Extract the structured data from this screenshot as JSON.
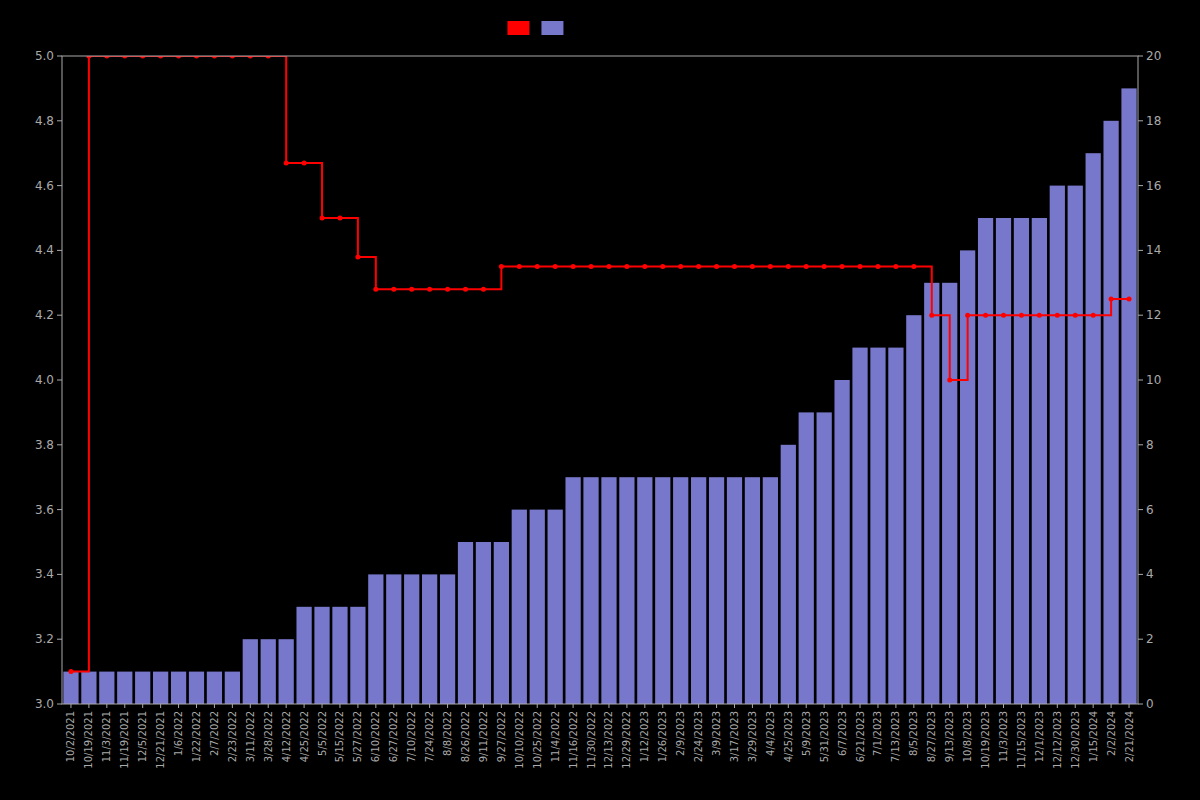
{
  "chart_data": {
    "type": "bar",
    "categories": [
      "10/2/2021",
      "10/19/2021",
      "11/3/2021",
      "11/19/2021",
      "12/5/2021",
      "12/21/2021",
      "1/6/2022",
      "1/22/2022",
      "2/7/2022",
      "2/23/2022",
      "3/11/2022",
      "3/28/2022",
      "4/12/2022",
      "4/25/2022",
      "5/5/2022",
      "5/15/2022",
      "5/27/2022",
      "6/10/2022",
      "6/27/2022",
      "7/10/2022",
      "7/24/2022",
      "8/8/2022",
      "8/26/2022",
      "9/11/2022",
      "9/27/2022",
      "10/10/2022",
      "10/25/2022",
      "11/4/2022",
      "11/16/2022",
      "11/30/2022",
      "12/13/2022",
      "12/29/2022",
      "1/12/2023",
      "1/26/2023",
      "2/9/2023",
      "2/24/2023",
      "3/9/2023",
      "3/17/2023",
      "3/29/2023",
      "4/4/2023",
      "4/25/2023",
      "5/9/2023",
      "5/31/2023",
      "6/7/2023",
      "6/21/2023",
      "7/1/2023",
      "7/13/2023",
      "8/5/2023",
      "8/27/2023",
      "9/13/2023",
      "10/8/2023",
      "10/19/2023",
      "11/3/2023",
      "11/15/2023",
      "12/1/2023",
      "12/12/2023",
      "12/30/2023",
      "1/15/2024",
      "2/2/2024",
      "2/21/2024"
    ],
    "series": [
      {
        "type": "bar",
        "axis": "y2",
        "color": "#7777cc",
        "values": [
          1,
          1,
          1,
          1,
          1,
          1,
          1,
          1,
          1,
          1,
          2,
          2,
          2,
          3,
          3,
          3,
          3,
          4,
          4,
          4,
          4,
          4,
          5,
          5,
          5,
          6,
          6,
          6,
          7,
          7,
          7,
          7,
          7,
          7,
          7,
          7,
          7,
          7,
          7,
          7,
          8,
          9,
          9,
          10,
          11,
          11,
          11,
          12,
          13,
          13,
          14,
          15,
          15,
          15,
          15,
          16,
          16,
          17,
          18,
          19
        ]
      },
      {
        "type": "line",
        "line_style": "step",
        "marker": "circle",
        "color": "#ff0000",
        "values": [
          3.1,
          5.0,
          5.0,
          5.0,
          5.0,
          5.0,
          5.0,
          5.0,
          5.0,
          5.0,
          5.0,
          5.0,
          4.67,
          4.67,
          4.5,
          4.5,
          4.38,
          4.28,
          4.28,
          4.28,
          4.28,
          4.28,
          4.28,
          4.28,
          4.35,
          4.35,
          4.35,
          4.35,
          4.35,
          4.35,
          4.35,
          4.35,
          4.35,
          4.35,
          4.35,
          4.35,
          4.35,
          4.35,
          4.35,
          4.35,
          4.35,
          4.35,
          4.35,
          4.35,
          4.35,
          4.35,
          4.35,
          4.35,
          4.2,
          4.0,
          4.2,
          4.2,
          4.2,
          4.2,
          4.2,
          4.2,
          4.2,
          4.2,
          4.25,
          4.25
        ]
      }
    ],
    "ylim": [
      3.0,
      5.0
    ],
    "yticks": [
      {
        "value": 3.0,
        "label": "3.0"
      },
      3.2,
      3.4,
      3.6,
      3.8,
      {
        "value": 4.0,
        "label": "4.0"
      },
      4.2,
      4.4,
      4.6,
      4.8,
      {
        "value": 5.0,
        "label": "5.0"
      }
    ],
    "y2lim": [
      0,
      20
    ],
    "y2ticks": [
      0,
      2,
      4,
      6,
      8,
      10,
      12,
      14,
      16,
      18,
      20
    ],
    "grid": false,
    "legend": "top"
  }
}
